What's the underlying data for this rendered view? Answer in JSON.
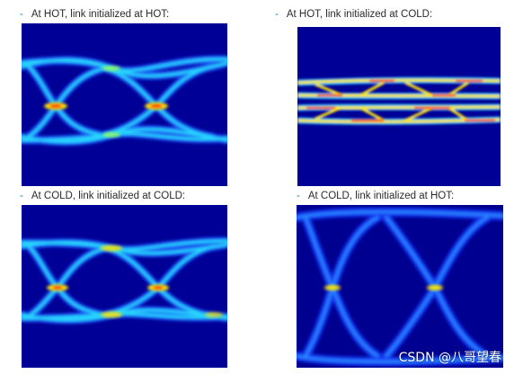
{
  "panels": [
    {
      "caption": "At HOT, link initialized at HOT:"
    },
    {
      "caption": "At HOT, link initialized at COLD:"
    },
    {
      "caption": "At COLD, link initialized at COLD:"
    },
    {
      "caption": "At COLD, link initialized at HOT:"
    }
  ],
  "caption_marker": "-",
  "watermark": "CSDN @八哥望春",
  "colors": {
    "background": "#000096",
    "trace_low": "#1e5cff",
    "trace_mid": "#27d4ff",
    "trace_hot": "#ffe600",
    "trace_peak": "#ff2a00"
  }
}
